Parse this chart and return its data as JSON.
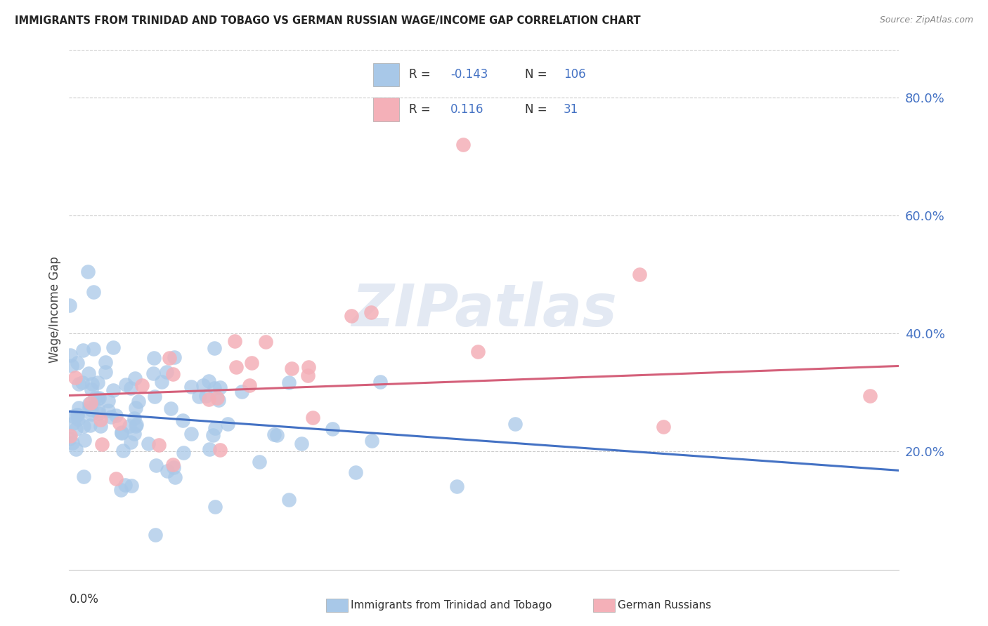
{
  "title": "IMMIGRANTS FROM TRINIDAD AND TOBAGO VS GERMAN RUSSIAN WAGE/INCOME GAP CORRELATION CHART",
  "source": "Source: ZipAtlas.com",
  "ylabel": "Wage/Income Gap",
  "xmin": 0.0,
  "xmax": 0.08,
  "ymin": 0.0,
  "ymax": 0.88,
  "ytick_vals": [
    0.2,
    0.4,
    0.6,
    0.8
  ],
  "ytick_labels": [
    "20.0%",
    "40.0%",
    "60.0%",
    "80.0%"
  ],
  "blue_R": -0.143,
  "blue_N": 106,
  "pink_R": 0.116,
  "pink_N": 31,
  "blue_scatter_color": "#a8c8e8",
  "pink_scatter_color": "#f4b0b8",
  "blue_line_color": "#4472c4",
  "pink_line_color": "#d4607a",
  "legend_text_color": "#4472c4",
  "legend_label_blue": "Immigrants from Trinidad and Tobago",
  "legend_label_pink": "German Russians",
  "watermark": "ZIPatlas",
  "blue_line_y0": 0.268,
  "blue_line_y1": 0.168,
  "pink_line_y0": 0.295,
  "pink_line_y1": 0.345
}
